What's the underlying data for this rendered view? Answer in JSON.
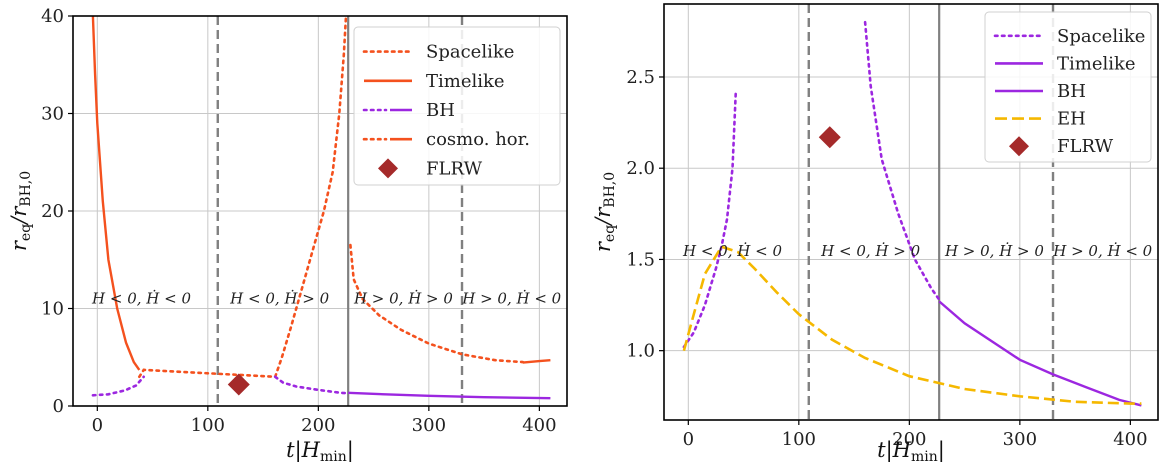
{
  "figure": {
    "colors": {
      "purple": "#9c27e0",
      "orange": "#f4511e",
      "gold": "#f5b800",
      "flrw": "#a52a2a",
      "vline": "#808080",
      "grid": "#c8c8c8"
    }
  },
  "chart_data": [
    {
      "type": "line",
      "xlabel": "t|H_min|",
      "ylabel": "r_eq/r_BH,0",
      "xlim": [
        -22,
        425
      ],
      "ylim": [
        0,
        40
      ],
      "xticks": [
        "0",
        "100",
        "200",
        "300",
        "400"
      ],
      "yticks": [
        "0",
        "10",
        "20",
        "30",
        "40"
      ],
      "grid": true,
      "legend_position": "top-right",
      "legend": [
        "Spacelike",
        "Timelike",
        "BH",
        "cosmo. hor.",
        "FLRW"
      ],
      "vlines": [
        {
          "x": 109,
          "style": "dashed"
        },
        {
          "x": 227,
          "style": "solid"
        },
        {
          "x": 330,
          "style": "dashed"
        }
      ],
      "regions": [
        {
          "text": "H < 0, Ḣ < 0",
          "x": 40,
          "y": 10.5
        },
        {
          "text": "H < 0, Ḣ > 0",
          "x": 165,
          "y": 10.5
        },
        {
          "text": "H > 0, Ḣ > 0",
          "x": 277,
          "y": 10.5
        },
        {
          "text": "H > 0, Ḣ < 0",
          "x": 375,
          "y": 10.5
        }
      ],
      "series": [
        {
          "name": "Spacelike",
          "color_key": "orange",
          "style": "dotted",
          "points": [
            [
              38,
              3.0
            ],
            [
              42,
              3.7
            ],
            [
              161,
              3.0
            ],
            [
              167,
              5.0
            ],
            [
              175,
              8.0
            ],
            [
              185,
              12.0
            ],
            [
              195,
              16.0
            ],
            [
              205,
              20.0
            ],
            [
              213,
              24.0
            ],
            [
              219,
              30.0
            ],
            [
              223,
              36.0
            ],
            [
              225,
              40.0
            ]
          ]
        },
        {
          "name": "Spacelike",
          "color_key": "orange",
          "style": "dotted",
          "points": [
            [
              229,
              16.5
            ],
            [
              232,
              13.0
            ],
            [
              240,
              11.0
            ],
            [
              255,
              9.3
            ],
            [
              275,
              7.8
            ],
            [
              300,
              6.4
            ],
            [
              330,
              5.3
            ],
            [
              360,
              4.7
            ],
            [
              385,
              4.5
            ]
          ]
        },
        {
          "name": "Timelike",
          "color_key": "orange",
          "style": "solid",
          "points": [
            [
              -4,
              40.0
            ],
            [
              -2,
              34.0
            ],
            [
              0,
              29.0
            ],
            [
              5,
              21.0
            ],
            [
              10,
              15.0
            ],
            [
              18,
              10.0
            ],
            [
              26,
              6.5
            ],
            [
              33,
              4.5
            ],
            [
              38,
              3.7
            ]
          ]
        },
        {
          "name": "Timelike",
          "color_key": "orange",
          "style": "solid",
          "points": [
            [
              385,
              4.45
            ],
            [
              400,
              4.6
            ],
            [
              410,
              4.7
            ]
          ]
        },
        {
          "name": "BH",
          "color_key": "purple",
          "style": "dotted",
          "points": [
            [
              -4,
              1.1
            ],
            [
              10,
              1.2
            ],
            [
              25,
              1.6
            ],
            [
              35,
              2.1
            ],
            [
              42,
              3.0
            ]
          ]
        },
        {
          "name": "BH",
          "color_key": "purple",
          "style": "dotted",
          "points": [
            [
              161,
              3.0
            ],
            [
              168,
              2.4
            ],
            [
              180,
              2.0
            ],
            [
              200,
              1.65
            ],
            [
              220,
              1.35
            ],
            [
              227,
              1.3
            ]
          ]
        },
        {
          "name": "BH",
          "color_key": "purple",
          "style": "solid",
          "points": [
            [
              227,
              1.35
            ],
            [
              260,
              1.2
            ],
            [
              300,
              1.05
            ],
            [
              350,
              0.9
            ],
            [
              410,
              0.8
            ]
          ]
        }
      ],
      "flrw": {
        "x": 128,
        "y": 2.2
      }
    },
    {
      "type": "line",
      "xlabel": "t|H_min|",
      "ylabel": "r_eq/r_BH,0",
      "xlim": [
        -22,
        425
      ],
      "ylim": [
        0.62,
        2.9
      ],
      "xticks": [
        "0",
        "100",
        "200",
        "300",
        "400"
      ],
      "yticks": [
        "1.0",
        "1.5",
        "2.0",
        "2.5"
      ],
      "grid": true,
      "legend_position": "top-right",
      "legend": [
        "Spacelike",
        "Timelike",
        "BH",
        "EH",
        "FLRW"
      ],
      "vlines": [
        {
          "x": 109,
          "style": "dashed"
        },
        {
          "x": 227,
          "style": "solid"
        },
        {
          "x": 330,
          "style": "dashed"
        }
      ],
      "regions": [
        {
          "text": "H < 0, Ḣ < 0",
          "x": 40,
          "y": 1.52
        },
        {
          "text": "H < 0, Ḣ > 0",
          "x": 165,
          "y": 1.52
        },
        {
          "text": "H > 0, Ḣ > 0",
          "x": 277,
          "y": 1.52
        },
        {
          "text": "H > 0, Ḣ < 0",
          "x": 375,
          "y": 1.52
        }
      ],
      "series": [
        {
          "name": "Spacelike",
          "color_key": "purple",
          "style": "dotted",
          "points": [
            [
              -4,
              1.02
            ],
            [
              5,
              1.1
            ],
            [
              15,
              1.25
            ],
            [
              25,
              1.45
            ],
            [
              30,
              1.57
            ],
            [
              35,
              1.72
            ],
            [
              40,
              2.0
            ],
            [
              43,
              2.42
            ]
          ]
        },
        {
          "name": "Spacelike",
          "color_key": "purple",
          "style": "dotted",
          "points": [
            [
              160,
              2.8
            ],
            [
              165,
              2.45
            ],
            [
              175,
              2.05
            ],
            [
              190,
              1.75
            ],
            [
              205,
              1.5
            ],
            [
              220,
              1.34
            ],
            [
              227,
              1.28
            ]
          ]
        },
        {
          "name": "Timelike",
          "color_key": "purple",
          "style": "solid",
          "points": [
            [
              227,
              1.27
            ],
            [
              250,
              1.15
            ],
            [
              280,
              1.03
            ],
            [
              300,
              0.95
            ],
            [
              330,
              0.87
            ],
            [
              360,
              0.8
            ],
            [
              390,
              0.73
            ],
            [
              410,
              0.7
            ]
          ]
        },
        {
          "name": "EH",
          "color_key": "gold",
          "style": "dashed",
          "points": [
            [
              -4,
              1.0
            ],
            [
              5,
              1.2
            ],
            [
              15,
              1.42
            ],
            [
              30,
              1.57
            ],
            [
              45,
              1.54
            ],
            [
              60,
              1.45
            ],
            [
              80,
              1.32
            ],
            [
              100,
              1.2
            ],
            [
              130,
              1.06
            ],
            [
              160,
              0.96
            ],
            [
              200,
              0.86
            ],
            [
              250,
              0.79
            ],
            [
              300,
              0.75
            ],
            [
              350,
              0.72
            ],
            [
              400,
              0.71
            ],
            [
              410,
              0.71
            ]
          ]
        }
      ],
      "flrw": {
        "x": 128,
        "y": 2.17
      }
    }
  ]
}
